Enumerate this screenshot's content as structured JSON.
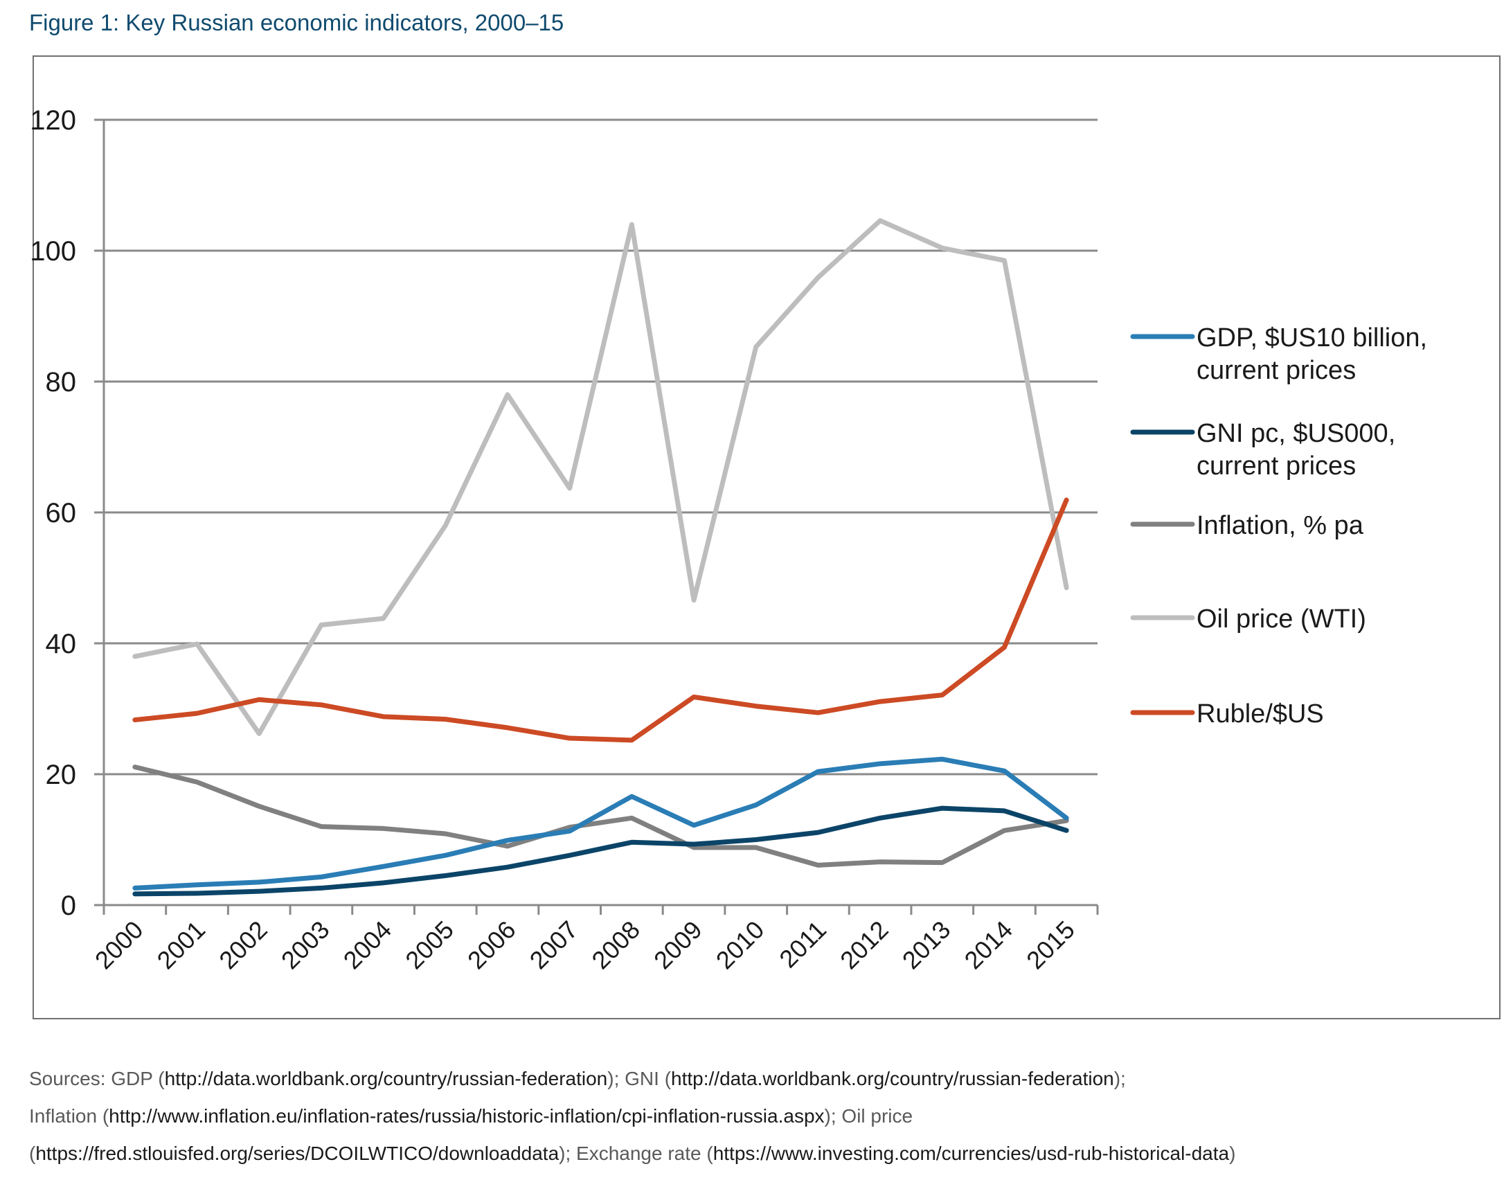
{
  "title": "Figure 1: Key Russian economic indicators, 2000–15",
  "sources": {
    "line1": [
      {
        "t": "Sources: GDP (",
        "url": false
      },
      {
        "t": "http://data.worldbank.org/country/russian-federation",
        "url": true
      },
      {
        "t": "); GNI (",
        "url": false
      },
      {
        "t": "http://data.worldbank.org/country/russian-federation",
        "url": true
      },
      {
        "t": ");",
        "url": false
      }
    ],
    "line2": [
      {
        "t": "Inflation (",
        "url": false
      },
      {
        "t": "http://www.inflation.eu/inflation-rates/russia/historic-inflation/cpi-inflation-russia.aspx",
        "url": true
      },
      {
        "t": "); Oil price",
        "url": false
      }
    ],
    "line3": [
      {
        "t": "(",
        "url": false
      },
      {
        "t": "https://fred.stlouisfed.org/series/DCOILWTICO/downloaddata",
        "url": true
      },
      {
        "t": "); Exchange rate (",
        "url": false
      },
      {
        "t": "https://www.investing.com/currencies/usd-rub-historical-data",
        "url": true
      },
      {
        "t": ")",
        "url": false
      }
    ]
  },
  "chart_data": {
    "type": "line",
    "title": "Figure 1: Key Russian economic indicators, 2000–15",
    "xlabel": "",
    "ylabel": "",
    "x": [
      "2000",
      "2001",
      "2002",
      "2003",
      "2004",
      "2005",
      "2006",
      "2007",
      "2008",
      "2009",
      "2010",
      "2011",
      "2012",
      "2013",
      "2014",
      "2015"
    ],
    "ylim": [
      0,
      120
    ],
    "yticks": [
      0,
      20,
      40,
      60,
      80,
      100,
      120
    ],
    "grid": true,
    "legend_position": "right",
    "series": [
      {
        "name": "GDP, $US10 billion, current prices",
        "label_lines": [
          "GDP, $US10 billion,",
          "current prices"
        ],
        "color": "#2a7db5",
        "values": [
          2.6,
          3.1,
          3.5,
          4.3,
          5.9,
          7.6,
          9.9,
          11.3,
          16.6,
          12.2,
          15.3,
          20.4,
          21.6,
          22.3,
          20.5,
          13.3
        ]
      },
      {
        "name": "GNI pc, $US000, current prices",
        "label_lines": [
          "GNI pc, $US000,",
          "current prices"
        ],
        "color": "#0b4468",
        "values": [
          1.7,
          1.8,
          2.1,
          2.6,
          3.4,
          4.5,
          5.8,
          7.6,
          9.6,
          9.3,
          10.0,
          11.1,
          13.3,
          14.8,
          14.4,
          11.4
        ]
      },
      {
        "name": "Inflation, % pa",
        "label_lines": [
          "Inflation, % pa"
        ],
        "color": "#808080",
        "values": [
          21.1,
          18.8,
          15.1,
          12.0,
          11.7,
          10.9,
          9.0,
          11.9,
          13.3,
          8.8,
          8.8,
          6.1,
          6.6,
          6.5,
          11.4,
          12.9
        ]
      },
      {
        "name": "Oil price (WTI)",
        "label_lines": [
          "Oil price (WTI)"
        ],
        "color": "#bdbdbd",
        "values": [
          38.0,
          39.9,
          26.2,
          42.8,
          43.8,
          58.0,
          78.0,
          63.7,
          104.0,
          46.6,
          85.3,
          95.9,
          104.6,
          100.4,
          98.5,
          48.5
        ]
      },
      {
        "name": "Ruble/$US",
        "label_lines": [
          "Ruble/$US"
        ],
        "color": "#cc4a24",
        "values": [
          28.3,
          29.3,
          31.4,
          30.6,
          28.8,
          28.4,
          27.1,
          25.5,
          25.2,
          31.8,
          30.4,
          29.4,
          31.1,
          32.1,
          39.4,
          61.9
        ]
      }
    ]
  }
}
